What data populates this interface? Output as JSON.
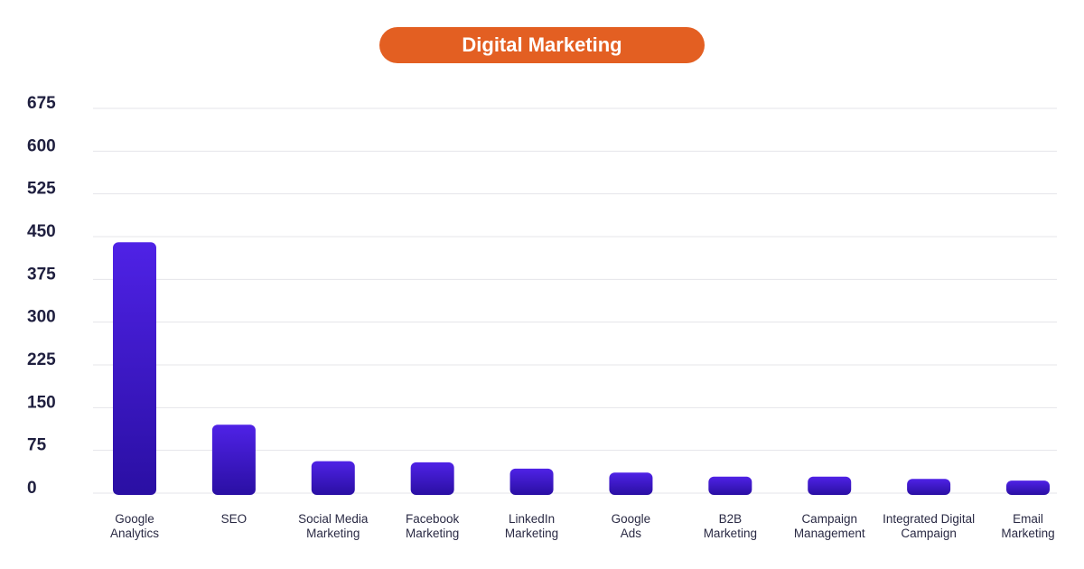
{
  "chart_data": {
    "type": "bar",
    "title": "Digital Marketing",
    "categories": [
      [
        "Google",
        "Analytics"
      ],
      [
        "SEO"
      ],
      [
        "Social Media",
        "Marketing"
      ],
      [
        "Facebook",
        "Marketing"
      ],
      [
        "LinkedIn",
        "Marketing"
      ],
      [
        "Google",
        "Ads"
      ],
      [
        "B2B",
        "Marketing"
      ],
      [
        "Campaign",
        "Management"
      ],
      [
        "Integrated Digital",
        "Campaign"
      ],
      [
        "Email",
        "Marketing"
      ]
    ],
    "values": [
      440,
      120,
      56,
      54,
      43,
      36,
      29,
      29,
      25,
      22
    ],
    "ylim": [
      0,
      675
    ],
    "yticks": [
      0,
      75,
      150,
      225,
      300,
      375,
      450,
      525,
      600,
      675
    ],
    "grid": true,
    "xlabel": "",
    "ylabel": "",
    "colors": {
      "bar_top": "#4f22e6",
      "bar_bottom": "#2a0fa3",
      "title_bg": "#e35f22",
      "grid": "#e4e4ea"
    }
  }
}
